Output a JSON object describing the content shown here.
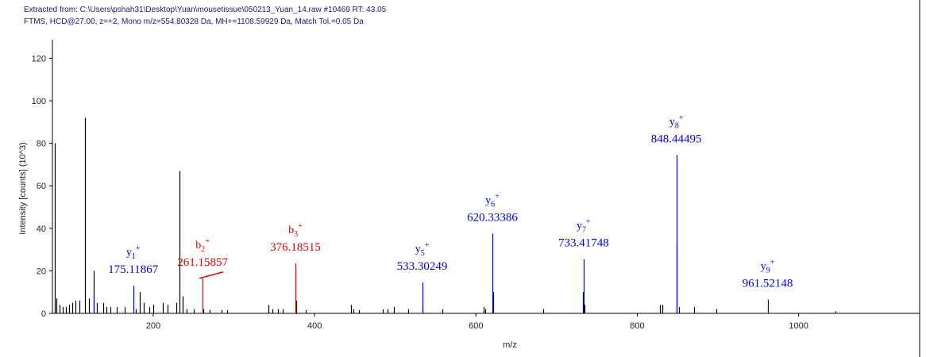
{
  "header": {
    "line1": "Extracted from: C:\\Users\\pshah31\\Desktop\\Yuan\\mousetissue\\050213_Yuan_14.raw  #10469  RT: 43.05",
    "line2": "FTMS, HCD@27.00, z=+2, Mono m/z=554.80328 Da, MH+=1108.59929 Da, Match Tol.=0.05 Da"
  },
  "colors": {
    "other": "#000000",
    "y": "#0000dd",
    "b": "#dd0000",
    "frame": "#000000"
  },
  "chart_data": {
    "type": "bar",
    "xlabel": "m/z",
    "ylabel": "Intensity [counts] (10^3)",
    "xlim": [
      75,
      1150
    ],
    "ylim": [
      0,
      125
    ],
    "xticks": [
      200,
      400,
      600,
      800,
      1000
    ],
    "yticks": [
      0,
      20,
      40,
      60,
      80,
      100,
      120
    ],
    "series": [
      {
        "kind": "other",
        "peaks": [
          [
            78,
            80
          ],
          [
            80,
            7
          ],
          [
            84,
            4
          ],
          [
            88,
            3
          ],
          [
            92,
            3
          ],
          [
            96,
            4
          ],
          [
            100,
            5
          ],
          [
            104,
            6
          ],
          [
            108,
            6
          ],
          [
            115,
            92
          ],
          [
            120,
            7
          ],
          [
            126,
            20
          ],
          [
            130,
            5
          ],
          [
            138,
            5
          ],
          [
            142,
            3
          ],
          [
            147,
            3
          ],
          [
            155,
            3
          ],
          [
            165,
            3
          ],
          [
            178,
            2
          ],
          [
            183,
            10
          ],
          [
            188,
            5
          ],
          [
            195,
            3
          ],
          [
            200,
            4
          ],
          [
            212,
            5
          ],
          [
            218,
            4
          ],
          [
            229,
            5
          ],
          [
            233,
            67
          ],
          [
            236,
            8
          ],
          [
            241,
            2
          ],
          [
            250,
            2
          ],
          [
            262,
            2
          ],
          [
            270,
            1.5
          ],
          [
            285,
            1.5
          ],
          [
            292,
            1.5
          ],
          [
            343,
            4
          ],
          [
            348,
            2
          ],
          [
            355,
            2
          ],
          [
            360,
            2
          ],
          [
            377,
            6
          ],
          [
            389,
            1.5
          ],
          [
            445,
            4
          ],
          [
            448,
            2
          ],
          [
            455,
            1.5
          ],
          [
            485,
            2
          ],
          [
            490,
            2
          ],
          [
            498,
            3
          ],
          [
            516,
            2
          ],
          [
            534,
            3
          ],
          [
            558,
            2
          ],
          [
            610,
            3
          ],
          [
            612,
            2
          ],
          [
            621,
            10
          ],
          [
            683,
            2
          ],
          [
            733,
            10
          ],
          [
            735,
            4
          ],
          [
            828,
            4
          ],
          [
            831,
            4
          ],
          [
            849,
            32
          ],
          [
            852,
            3
          ],
          [
            870,
            3
          ],
          [
            898,
            2
          ],
          [
            1046,
            1
          ]
        ]
      },
      {
        "kind": "y",
        "peaks": [
          [
            126,
            9
          ],
          [
            175.11867,
            13
          ],
          [
            533.30249,
            14.5
          ],
          [
            620.33386,
            37.5
          ],
          [
            733.41748,
            25.5
          ],
          [
            848.44495,
            74.5
          ],
          [
            961.52148,
            6.5
          ]
        ]
      },
      {
        "kind": "b",
        "peaks": [
          [
            261.15857,
            16.5
          ],
          [
            376.18515,
            23.5
          ]
        ]
      }
    ],
    "annotations": [
      {
        "ion": "y",
        "sub": "1",
        "sup": "+",
        "mz": "175.11867",
        "x": 175.11867,
        "y": 13,
        "color": "#0000dd"
      },
      {
        "ion": "b",
        "sub": "2",
        "sup": "+",
        "mz": "261.15857",
        "x": 261.15857,
        "y": 16.5,
        "color": "#dd0000",
        "leader": true
      },
      {
        "ion": "b",
        "sub": "3",
        "sup": "+",
        "mz": "376.18515",
        "x": 376.18515,
        "y": 23.5,
        "color": "#dd0000"
      },
      {
        "ion": "y",
        "sub": "5",
        "sup": "+",
        "mz": "533.30249",
        "x": 533.30249,
        "y": 14.5,
        "color": "#0000dd"
      },
      {
        "ion": "y",
        "sub": "6",
        "sup": "+",
        "mz": "620.33386",
        "x": 620.33386,
        "y": 37.5,
        "color": "#0000dd"
      },
      {
        "ion": "y",
        "sub": "7",
        "sup": "+",
        "mz": "733.41748",
        "x": 733.41748,
        "y": 25.5,
        "color": "#0000dd"
      },
      {
        "ion": "y",
        "sub": "8",
        "sup": "+",
        "mz": "848.44495",
        "x": 848.44495,
        "y": 74.5,
        "color": "#0000dd"
      },
      {
        "ion": "y",
        "sub": "9",
        "sup": "+",
        "mz": "961.52148",
        "x": 961.52148,
        "y": 6.5,
        "color": "#0000dd"
      }
    ]
  }
}
